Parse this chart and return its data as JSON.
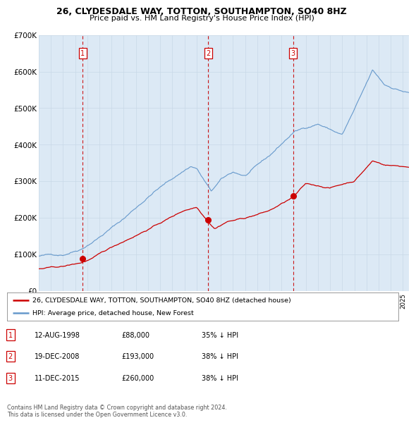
{
  "title": "26, CLYDESDALE WAY, TOTTON, SOUTHAMPTON, SO40 8HZ",
  "subtitle": "Price paid vs. HM Land Registry's House Price Index (HPI)",
  "background_color": "#ffffff",
  "plot_bg_color": "#dce9f5",
  "red_line_color": "#cc0000",
  "blue_line_color": "#6699cc",
  "dashed_line_color": "#cc0000",
  "purchases": [
    {
      "date_num": 1998.61,
      "price": 88000,
      "label": "1"
    },
    {
      "date_num": 2008.96,
      "price": 193000,
      "label": "2"
    },
    {
      "date_num": 2015.95,
      "price": 260000,
      "label": "3"
    }
  ],
  "legend_entries": [
    "26, CLYDESDALE WAY, TOTTON, SOUTHAMPTON, SO40 8HZ (detached house)",
    "HPI: Average price, detached house, New Forest"
  ],
  "table_rows": [
    [
      "1",
      "12-AUG-1998",
      "£88,000",
      "35% ↓ HPI"
    ],
    [
      "2",
      "19-DEC-2008",
      "£193,000",
      "38% ↓ HPI"
    ],
    [
      "3",
      "11-DEC-2015",
      "£260,000",
      "38% ↓ HPI"
    ]
  ],
  "footer": "Contains HM Land Registry data © Crown copyright and database right 2024.\nThis data is licensed under the Open Government Licence v3.0.",
  "ylim": [
    0,
    700000
  ],
  "yticks": [
    0,
    100000,
    200000,
    300000,
    400000,
    500000,
    600000,
    700000
  ],
  "ytick_labels": [
    "£0",
    "£100K",
    "£200K",
    "£300K",
    "£400K",
    "£500K",
    "£600K",
    "£700K"
  ],
  "xlim_start": 1995.0,
  "xlim_end": 2025.5
}
